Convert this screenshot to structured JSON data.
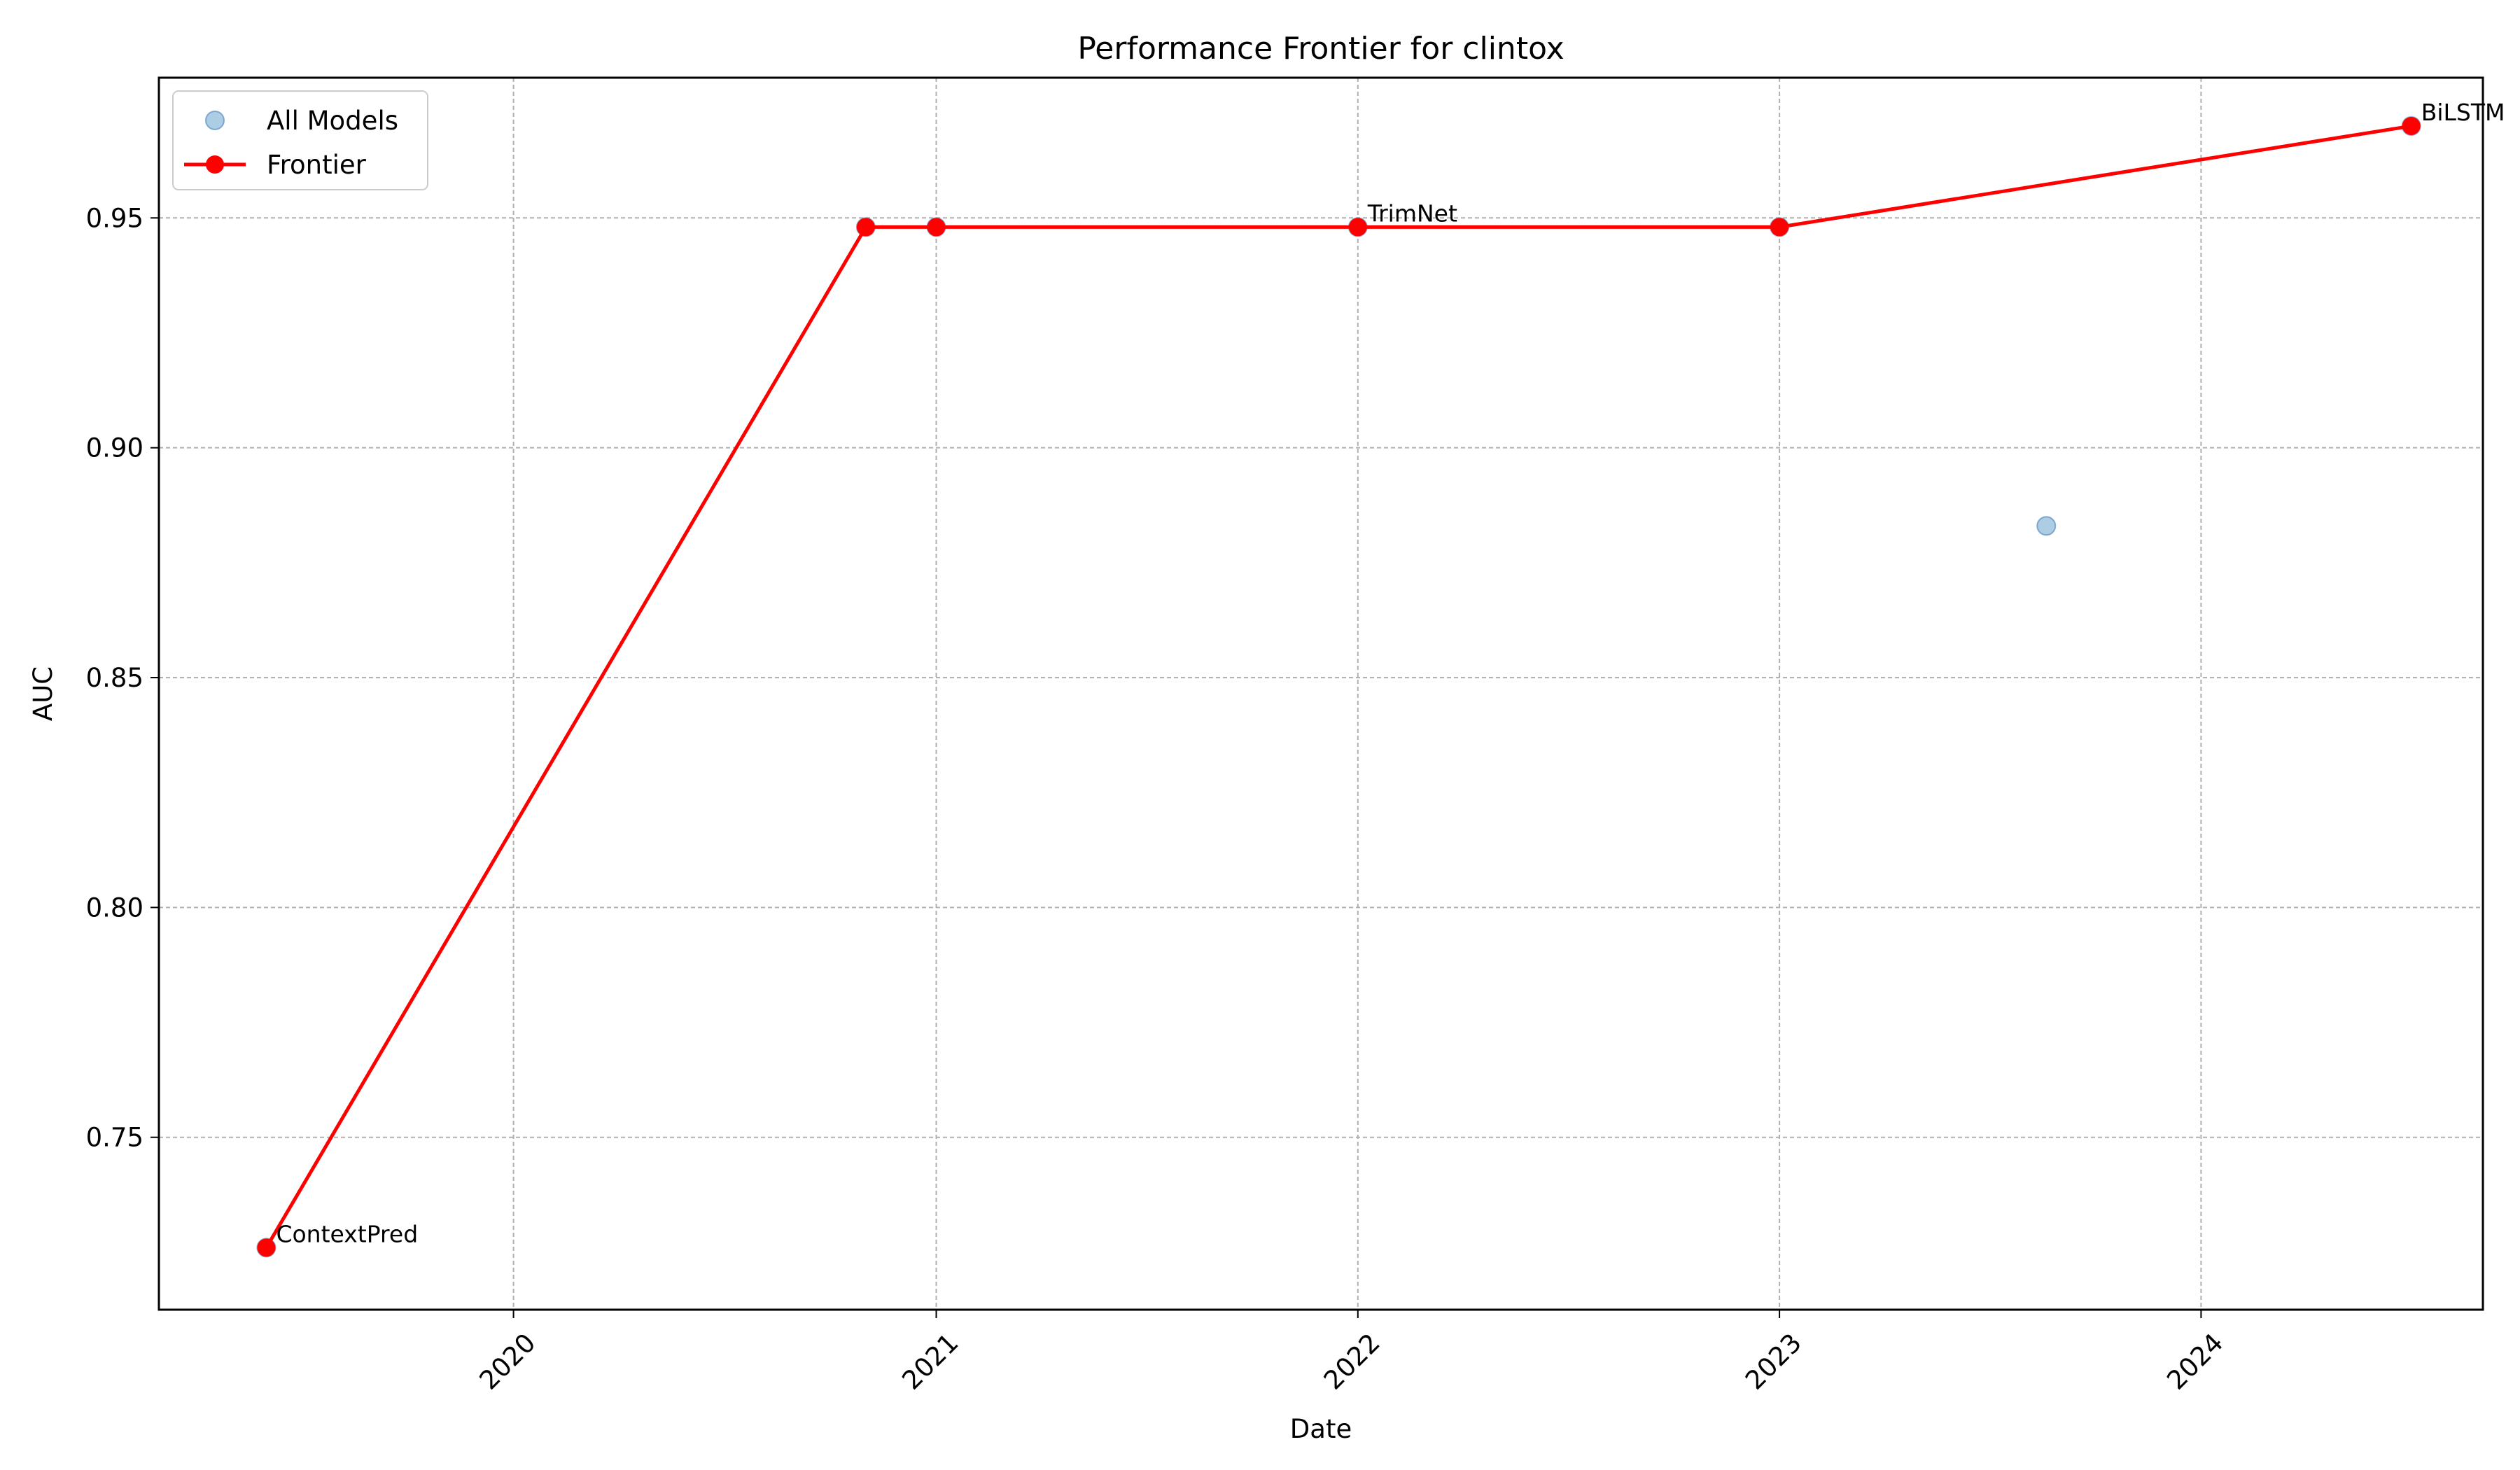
{
  "chart_data": {
    "type": "scatter",
    "title": "Performance Frontier for clintox",
    "xlabel": "Date",
    "ylabel": "AUC",
    "xlim": [
      "2019-02-28",
      "2024-09-01"
    ],
    "ylim": [
      0.7125,
      0.9805
    ],
    "x_ticks": [
      "2020",
      "2021",
      "2022",
      "2023",
      "2024"
    ],
    "y_ticks": [
      "0.75",
      "0.80",
      "0.85",
      "0.90",
      "0.95"
    ],
    "grid": true,
    "legend": {
      "position": "upper-left",
      "entries": [
        "All Models",
        "Frontier"
      ]
    },
    "series": [
      {
        "name": "All Models",
        "style": "scatter",
        "color": "#7fb2d5",
        "points": [
          {
            "x": "2019-06-01",
            "y": 0.726
          },
          {
            "x": "2020-11-01",
            "y": 0.948
          },
          {
            "x": "2021-01-01",
            "y": 0.948
          },
          {
            "x": "2022-01-01",
            "y": 0.948
          },
          {
            "x": "2023-01-01",
            "y": 0.948
          },
          {
            "x": "2023-08-20",
            "y": 0.883
          },
          {
            "x": "2024-07-01",
            "y": 0.97
          }
        ]
      },
      {
        "name": "Frontier",
        "style": "line-markers",
        "color": "#ff0000",
        "points": [
          {
            "x": "2019-06-01",
            "y": 0.726
          },
          {
            "x": "2020-11-01",
            "y": 0.948
          },
          {
            "x": "2021-01-01",
            "y": 0.948
          },
          {
            "x": "2022-01-01",
            "y": 0.948
          },
          {
            "x": "2023-01-01",
            "y": 0.948
          },
          {
            "x": "2024-07-01",
            "y": 0.97
          }
        ]
      }
    ],
    "annotations": [
      {
        "text": "ContextPred",
        "x": "2019-06-01",
        "y": 0.726
      },
      {
        "text": "TrimNet",
        "x": "2022-01-01",
        "y": 0.948
      },
      {
        "text": "BiLSTM",
        "x": "2024-07-01",
        "y": 0.97
      }
    ]
  }
}
